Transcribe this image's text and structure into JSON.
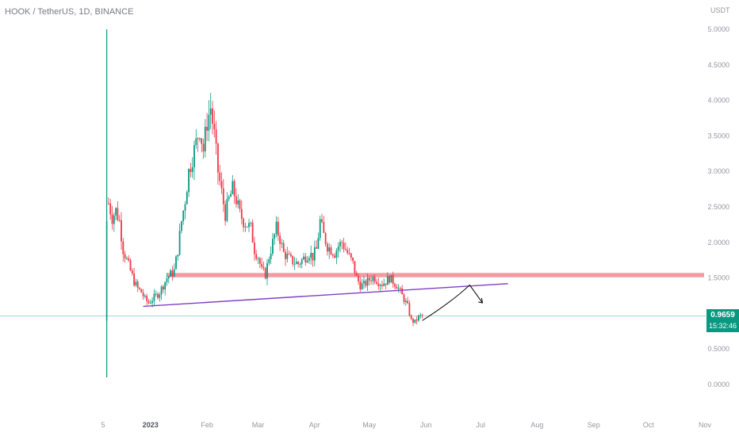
{
  "header": {
    "symbol_title": "HOOK / TetherUS, 1D, BINANCE",
    "currency": "USDT"
  },
  "last_price": {
    "value": "0.9659",
    "countdown": "15:32:46",
    "color": "#089981"
  },
  "colors": {
    "up": "#089981",
    "down": "#f23645",
    "support_zone": "#f08a8f",
    "trendline": "#7e3fc4",
    "axis_text": "#9598a1",
    "projection": "#000000"
  },
  "chart_data": {
    "type": "candlestick",
    "title": "HOOK / TetherUS, 1D, BINANCE",
    "ylabel": "USDT",
    "ylim": [
      0,
      5
    ],
    "y_ticks": [
      "5.0000",
      "4.5000",
      "4.0000",
      "3.5000",
      "3.0000",
      "2.5000",
      "2.0000",
      "1.5000",
      "1.0000",
      "0.5000",
      "0.0000"
    ],
    "x_ticks": [
      "5",
      "2023",
      "Feb",
      "Mar",
      "Apr",
      "May",
      "Jun",
      "Jul",
      "Aug",
      "Sep",
      "Oct",
      "Nov"
    ],
    "x_ticks_days": [
      5,
      31,
      62,
      90,
      121,
      151,
      182,
      212,
      243,
      274,
      304,
      335
    ],
    "day_zero": "2022-12-01",
    "listing_spike": {
      "day": 7,
      "low": 0.1,
      "high": 5.0
    },
    "price_path": [
      [
        8,
        2.55
      ],
      [
        10,
        2.35
      ],
      [
        12,
        2.45
      ],
      [
        14,
        2.3
      ],
      [
        16,
        1.9
      ],
      [
        18,
        1.75
      ],
      [
        20,
        1.6
      ],
      [
        22,
        1.45
      ],
      [
        24,
        1.35
      ],
      [
        26,
        1.3
      ],
      [
        28,
        1.2
      ],
      [
        30,
        1.15
      ],
      [
        32,
        1.2
      ],
      [
        34,
        1.25
      ],
      [
        36,
        1.3
      ],
      [
        38,
        1.4
      ],
      [
        40,
        1.5
      ],
      [
        42,
        1.55
      ],
      [
        44,
        1.6
      ],
      [
        46,
        1.9
      ],
      [
        48,
        2.3
      ],
      [
        50,
        2.6
      ],
      [
        52,
        3.0
      ],
      [
        54,
        3.2
      ],
      [
        56,
        3.4
      ],
      [
        58,
        3.6
      ],
      [
        60,
        3.3
      ],
      [
        62,
        3.7
      ],
      [
        64,
        3.9
      ],
      [
        66,
        3.5
      ],
      [
        68,
        3.0
      ],
      [
        70,
        2.7
      ],
      [
        72,
        2.4
      ],
      [
        74,
        2.6
      ],
      [
        76,
        2.75
      ],
      [
        78,
        2.6
      ],
      [
        80,
        2.4
      ],
      [
        82,
        2.3
      ],
      [
        84,
        2.25
      ],
      [
        86,
        2.2
      ],
      [
        88,
        1.9
      ],
      [
        90,
        1.8
      ],
      [
        92,
        1.6
      ],
      [
        94,
        1.55
      ],
      [
        96,
        1.8
      ],
      [
        98,
        2.0
      ],
      [
        100,
        2.2
      ],
      [
        102,
        2.05
      ],
      [
        104,
        1.85
      ],
      [
        106,
        1.8
      ],
      [
        108,
        1.75
      ],
      [
        110,
        1.72
      ],
      [
        112,
        1.7
      ],
      [
        114,
        1.75
      ],
      [
        116,
        1.8
      ],
      [
        118,
        1.85
      ],
      [
        120,
        1.8
      ],
      [
        122,
        1.9
      ],
      [
        124,
        2.3
      ],
      [
        126,
        2.1
      ],
      [
        128,
        1.95
      ],
      [
        130,
        1.9
      ],
      [
        132,
        1.85
      ],
      [
        134,
        1.95
      ],
      [
        136,
        2.0
      ],
      [
        138,
        1.9
      ],
      [
        140,
        1.8
      ],
      [
        142,
        1.7
      ],
      [
        144,
        1.5
      ],
      [
        146,
        1.4
      ],
      [
        148,
        1.4
      ],
      [
        150,
        1.45
      ],
      [
        152,
        1.5
      ],
      [
        154,
        1.5
      ],
      [
        156,
        1.45
      ],
      [
        158,
        1.42
      ],
      [
        160,
        1.45
      ],
      [
        162,
        1.5
      ],
      [
        164,
        1.45
      ],
      [
        166,
        1.4
      ],
      [
        168,
        1.3
      ],
      [
        170,
        1.2
      ],
      [
        172,
        1.1
      ],
      [
        174,
        0.9
      ],
      [
        176,
        0.88
      ],
      [
        178,
        0.95
      ],
      [
        180,
        0.97
      ]
    ],
    "support_zone": {
      "start_day": 40,
      "end_day": 350,
      "low": 1.51,
      "high": 1.57
    },
    "trendline": {
      "start": [
        27,
        1.1
      ],
      "end": [
        227,
        1.42
      ]
    },
    "projection_path": [
      [
        180,
        0.9
      ],
      [
        197,
        1.18
      ],
      [
        206,
        1.4
      ],
      [
        213,
        1.15
      ]
    ],
    "current_price_line": 0.9659,
    "grid": false,
    "legend": "none"
  }
}
